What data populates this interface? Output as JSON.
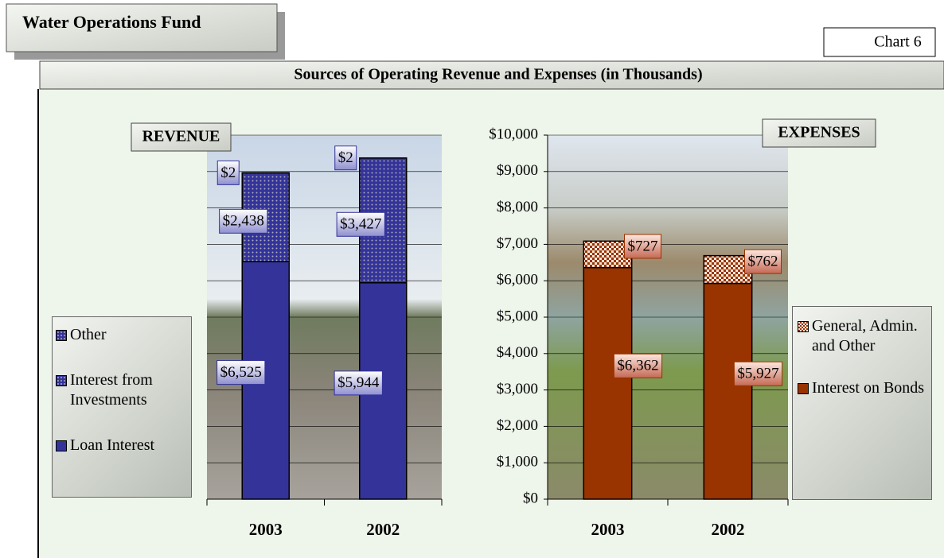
{
  "header": {
    "title": "Water Operations Fund",
    "chart_number": "Chart 6",
    "subtitle": "Sources of Operating Revenue and Expenses (in Thousands)"
  },
  "chart_data": [
    {
      "type": "bar",
      "stacked": true,
      "title": "REVENUE",
      "categories": [
        "2003",
        "2002"
      ],
      "ylim": [
        0,
        10000
      ],
      "grid": true,
      "legend": "left",
      "series": [
        {
          "name": "Loan Interest",
          "color": "#333399",
          "pattern": "solid",
          "values": [
            6525,
            5944
          ],
          "value_labels": [
            "$6,525",
            "$5,944"
          ]
        },
        {
          "name": "Interest from Investments",
          "color": "#333399",
          "pattern": "dots",
          "values": [
            2438,
            3427
          ],
          "value_labels": [
            "$2,438",
            "$3,427"
          ]
        },
        {
          "name": "Other",
          "color": "#333399",
          "pattern": "dots",
          "values": [
            2,
            2
          ],
          "value_labels": [
            "$2",
            "$2"
          ]
        }
      ]
    },
    {
      "type": "bar",
      "stacked": true,
      "title": "EXPENSES",
      "categories": [
        "2003",
        "2002"
      ],
      "ylim": [
        0,
        10000
      ],
      "grid": true,
      "legend": "right",
      "yticks": [
        {
          "value": 0,
          "label": "$0"
        },
        {
          "value": 1000,
          "label": "$1,000"
        },
        {
          "value": 2000,
          "label": "$2,000"
        },
        {
          "value": 3000,
          "label": "$3,000"
        },
        {
          "value": 4000,
          "label": "$4,000"
        },
        {
          "value": 5000,
          "label": "$5,000"
        },
        {
          "value": 6000,
          "label": "$6,000"
        },
        {
          "value": 7000,
          "label": "$7,000"
        },
        {
          "value": 8000,
          "label": "$8,000"
        },
        {
          "value": 9000,
          "label": "$9,000"
        },
        {
          "value": 10000,
          "label": "$10,000"
        }
      ],
      "series": [
        {
          "name": "Interest on Bonds",
          "color": "#993300",
          "pattern": "solid",
          "values": [
            6362,
            5927
          ],
          "value_labels": [
            "$6,362",
            "$5,927"
          ]
        },
        {
          "name": "General, Admin. and Other",
          "color": "#993300",
          "pattern": "checker",
          "values": [
            727,
            762
          ],
          "value_labels": [
            "$727",
            "$762"
          ]
        }
      ]
    }
  ]
}
